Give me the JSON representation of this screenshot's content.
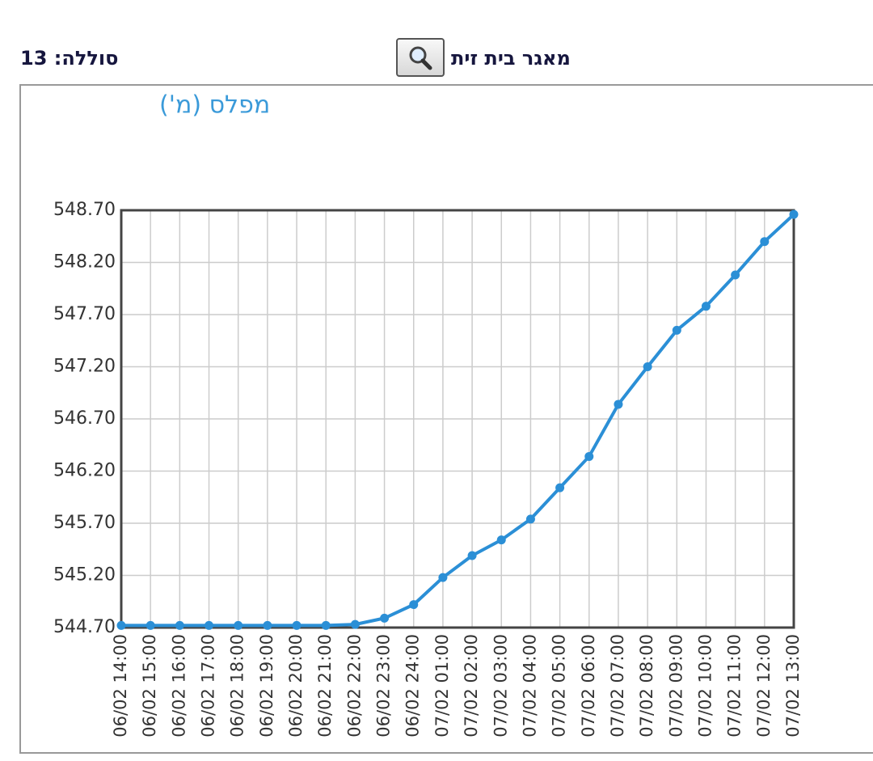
{
  "header": {
    "battery": "סוללה: 13",
    "site": "מאגר בית זית"
  },
  "chart_data": {
    "type": "line",
    "title": "מפלס (מ')",
    "categories": [
      "06/02 14:00",
      "06/02 15:00",
      "06/02 16:00",
      "06/02 17:00",
      "06/02 18:00",
      "06/02 19:00",
      "06/02 20:00",
      "06/02 21:00",
      "06/02 22:00",
      "06/02 23:00",
      "06/02 24:00",
      "07/02 01:00",
      "07/02 02:00",
      "07/02 03:00",
      "07/02 04:00",
      "07/02 05:00",
      "07/02 06:00",
      "07/02 07:00",
      "07/02 08:00",
      "07/02 09:00",
      "07/02 10:00",
      "07/02 11:00",
      "07/02 12:00",
      "07/02 13:00"
    ],
    "values": [
      544.72,
      544.72,
      544.72,
      544.72,
      544.72,
      544.72,
      544.72,
      544.72,
      544.73,
      544.79,
      544.92,
      545.18,
      545.39,
      545.54,
      545.74,
      546.04,
      546.34,
      546.84,
      547.2,
      547.55,
      547.78,
      548.08,
      548.4,
      548.66
    ],
    "color": "#2b8fd6",
    "ylim": [
      544.7,
      548.7
    ],
    "yticks": [
      {
        "value": 544.7,
        "label": "544.70"
      },
      {
        "value": 545.2,
        "label": "545.20"
      },
      {
        "value": 545.7,
        "label": "545.70"
      },
      {
        "value": 546.2,
        "label": "546.20"
      },
      {
        "value": 546.7,
        "label": "546.70"
      },
      {
        "value": 547.2,
        "label": "547.20"
      },
      {
        "value": 547.7,
        "label": "547.70"
      },
      {
        "value": 548.2,
        "label": "548.20"
      },
      {
        "value": 548.7,
        "label": "548.70"
      }
    ],
    "grid": true
  }
}
